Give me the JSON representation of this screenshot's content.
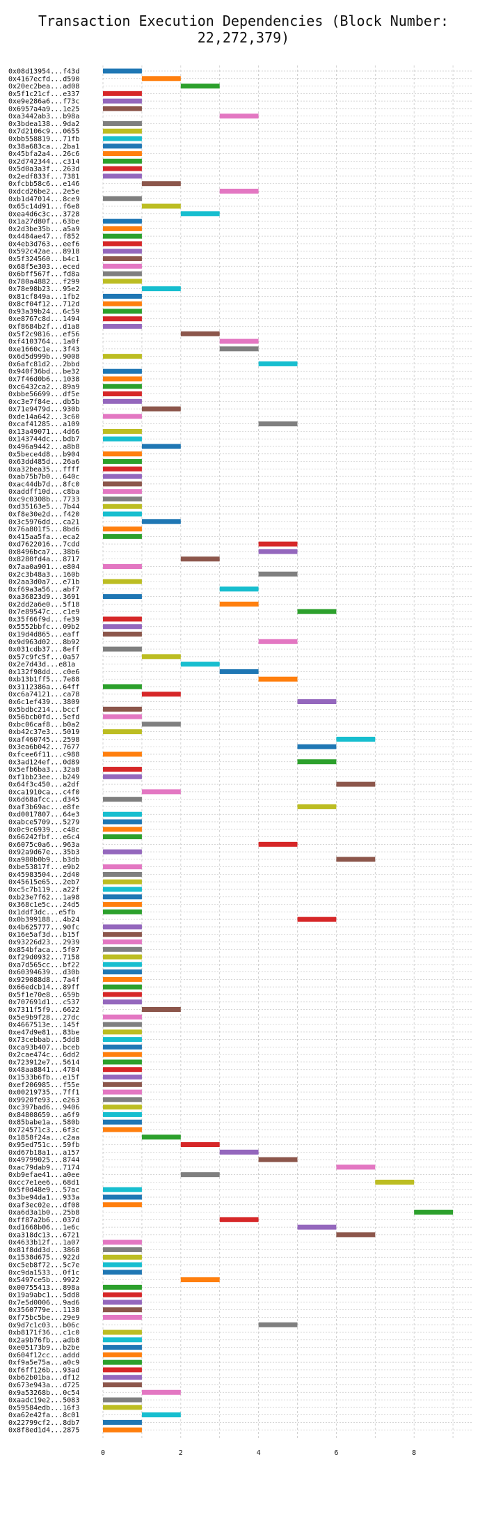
{
  "chart_data": {
    "type": "bar",
    "orientation": "horizontal",
    "title": "Transaction Execution Dependencies (Block Number: 22,272,379)",
    "xlabel": "",
    "ylabel": "",
    "xlim": [
      0,
      9.5
    ],
    "xticks": [
      0,
      2,
      4,
      6,
      8
    ],
    "grid": true,
    "legend": "none",
    "colors": [
      "#1f77b4",
      "#ff7f0e",
      "#2ca02c",
      "#d62728",
      "#9467bd",
      "#8c564b",
      "#e377c2",
      "#7f7f7f",
      "#bcbd22",
      "#17becf"
    ],
    "transactions": [
      {
        "label": "0x08d13954...f43d",
        "level": 0
      },
      {
        "label": "0x4167ecfd...d590",
        "level": 1
      },
      {
        "label": "0x20ec2bea...ad08",
        "level": 2
      },
      {
        "label": "0x5f1c21cf...e337",
        "level": 0
      },
      {
        "label": "0xe9e286a6...f73c",
        "level": 0
      },
      {
        "label": "0x6957a4a9...1e25",
        "level": 0
      },
      {
        "label": "0xa3442ab3...b98a",
        "level": 3
      },
      {
        "label": "0x3bdea138...9da2",
        "level": 0
      },
      {
        "label": "0x7d2106c9...0655",
        "level": 0
      },
      {
        "label": "0xbb558819...71fb",
        "level": 0
      },
      {
        "label": "0x38a683ca...2ba1",
        "level": 0
      },
      {
        "label": "0x45bfa2a4...26c6",
        "level": 0
      },
      {
        "label": "0x2d742344...c314",
        "level": 0
      },
      {
        "label": "0x5d0a3a3f...263d",
        "level": 0
      },
      {
        "label": "0x2edf833f...7381",
        "level": 0
      },
      {
        "label": "0xfcbb58c6...e146",
        "level": 1
      },
      {
        "label": "0xdcd26be2...2e5e",
        "level": 3
      },
      {
        "label": "0xb1d47014...8ce9",
        "level": 0
      },
      {
        "label": "0x65c14d91...f6e8",
        "level": 1
      },
      {
        "label": "0xea4d6c3c...3728",
        "level": 2
      },
      {
        "label": "0x1a27d80f...63be",
        "level": 0
      },
      {
        "label": "0x2d3be35b...a5a9",
        "level": 0
      },
      {
        "label": "0x4484ae47...f852",
        "level": 0
      },
      {
        "label": "0x4eb3d763...eef6",
        "level": 0
      },
      {
        "label": "0x592c42ae...8918",
        "level": 0
      },
      {
        "label": "0x5f324560...b4c1",
        "level": 0
      },
      {
        "label": "0x68f5e303...eced",
        "level": 0
      },
      {
        "label": "0x6bff567f...fd8a",
        "level": 0
      },
      {
        "label": "0x780a4882...f299",
        "level": 0
      },
      {
        "label": "0x78e98b23...95e2",
        "level": 1
      },
      {
        "label": "0x81cf849a...1fb2",
        "level": 0
      },
      {
        "label": "0x8cf04f12...712d",
        "level": 0
      },
      {
        "label": "0x93a39b24...6c59",
        "level": 0
      },
      {
        "label": "0xe8767c8d...1494",
        "level": 0
      },
      {
        "label": "0xf8684b2f...d1a8",
        "level": 0
      },
      {
        "label": "0x5f2c9816...ef56",
        "level": 2
      },
      {
        "label": "0xf4103764...1a0f",
        "level": 3
      },
      {
        "label": "0xe1660c1e...3f43",
        "level": 3
      },
      {
        "label": "0x6d5d999b...9008",
        "level": 0
      },
      {
        "label": "0x6afc81d2...2bbd",
        "level": 4
      },
      {
        "label": "0x940f36bd...be32",
        "level": 0
      },
      {
        "label": "0x7f46d0b6...1038",
        "level": 0
      },
      {
        "label": "0xc6432ca2...89a9",
        "level": 0
      },
      {
        "label": "0xbbe56699...df5e",
        "level": 0
      },
      {
        "label": "0xc3e7f84e...db5b",
        "level": 0
      },
      {
        "label": "0x71e9479d...930b",
        "level": 1
      },
      {
        "label": "0xde14a642...3c60",
        "level": 0
      },
      {
        "label": "0xcaf41285...a109",
        "level": 4
      },
      {
        "label": "0x13a49071...4d66",
        "level": 0
      },
      {
        "label": "0x143744dc...bdb7",
        "level": 0
      },
      {
        "label": "0x496a9442...a8b8",
        "level": 1
      },
      {
        "label": "0x5bece4d8...b904",
        "level": 0
      },
      {
        "label": "0x63dd485d...26a6",
        "level": 0
      },
      {
        "label": "0xa32bea35...ffff",
        "level": 0
      },
      {
        "label": "0xab75b7b0...640c",
        "level": 0
      },
      {
        "label": "0xac44db7d...8fc0",
        "level": 0
      },
      {
        "label": "0xaddff10d...c8ba",
        "level": 0
      },
      {
        "label": "0xc9c0308b...7733",
        "level": 0
      },
      {
        "label": "0xd35163e5...7b44",
        "level": 0
      },
      {
        "label": "0xf8e30e2d...f420",
        "level": 0
      },
      {
        "label": "0x3c5976dd...ca21",
        "level": 1
      },
      {
        "label": "0x76a801f5...8bd6",
        "level": 0
      },
      {
        "label": "0x415aa5fa...eca2",
        "level": 0
      },
      {
        "label": "0xd7622016...7cdd",
        "level": 4
      },
      {
        "label": "0x8496bca7...38b6",
        "level": 4
      },
      {
        "label": "0x8280fd4a...8717",
        "level": 2
      },
      {
        "label": "0x7aa0a901...e804",
        "level": 0
      },
      {
        "label": "0x2c3b48a3...160b",
        "level": 4
      },
      {
        "label": "0x2aa3d0a7...e71b",
        "level": 0
      },
      {
        "label": "0xf69a3a56...abf7",
        "level": 3
      },
      {
        "label": "0xa36823d9...3691",
        "level": 0
      },
      {
        "label": "0x2dd2a6e0...5f18",
        "level": 3
      },
      {
        "label": "0x7e89547c...c1e9",
        "level": 5
      },
      {
        "label": "0x35f66f9d...fe39",
        "level": 0
      },
      {
        "label": "0x5552bbfc...09b2",
        "level": 0
      },
      {
        "label": "0x19d4d865...eaff",
        "level": 0
      },
      {
        "label": "0x9d963d02...8b92",
        "level": 4
      },
      {
        "label": "0x031cdb37...8eff",
        "level": 0
      },
      {
        "label": "0x57c9fc5f...0a57",
        "level": 1
      },
      {
        "label": "0x2e7d43d...e81a",
        "level": 2
      },
      {
        "label": "0x132f98dd...c0e6",
        "level": 3
      },
      {
        "label": "0xb13b1ff5...7e88",
        "level": 4
      },
      {
        "label": "0x3112386a...64ff",
        "level": 0
      },
      {
        "label": "0xc6a74121...ca78",
        "level": 1
      },
      {
        "label": "0x6c1ef439...3809",
        "level": 5
      },
      {
        "label": "0x5bdbc214...bccf",
        "level": 0
      },
      {
        "label": "0x56bcb0fd...5efd",
        "level": 0
      },
      {
        "label": "0xbc06caf8...b0a2",
        "level": 1
      },
      {
        "label": "0xb42c37e3...5019",
        "level": 0
      },
      {
        "label": "0xaf460745...2598",
        "level": 6
      },
      {
        "label": "0x3ea6b042...7677",
        "level": 5
      },
      {
        "label": "0xfcee6f11...c988",
        "level": 0
      },
      {
        "label": "0x3ad124ef...0d89",
        "level": 5
      },
      {
        "label": "0x5efb6ba3...32a8",
        "level": 0
      },
      {
        "label": "0xf1bb23ee...b249",
        "level": 0
      },
      {
        "label": "0x64f3c450...a2df",
        "level": 6
      },
      {
        "label": "0xca1910ca...c4f0",
        "level": 1
      },
      {
        "label": "0x6d68afcc...d345",
        "level": 0
      },
      {
        "label": "0xaf3b69ac...e8fe",
        "level": 5
      },
      {
        "label": "0xd0017807...64e3",
        "level": 0
      },
      {
        "label": "0xabce5709...5279",
        "level": 0
      },
      {
        "label": "0x0c9c6939...c48c",
        "level": 0
      },
      {
        "label": "0x66242fbf...e6c4",
        "level": 0
      },
      {
        "label": "0x6075c0a6...963a",
        "level": 4
      },
      {
        "label": "0x92a9d67e...35b3",
        "level": 0
      },
      {
        "label": "0xa980b0b9...b3db",
        "level": 6
      },
      {
        "label": "0xbe53817f...e9b2",
        "level": 0
      },
      {
        "label": "0x45983504...2d40",
        "level": 0
      },
      {
        "label": "0x45615e65...2eb7",
        "level": 0
      },
      {
        "label": "0xc5c7b119...a22f",
        "level": 0
      },
      {
        "label": "0xb23e7f62...1a98",
        "level": 0
      },
      {
        "label": "0x368c1e5c...24d5",
        "level": 0
      },
      {
        "label": "0x1ddf3dc...e5fb",
        "level": 0
      },
      {
        "label": "0x0b399188...4b24",
        "level": 5
      },
      {
        "label": "0x4b625777...90fc",
        "level": 0
      },
      {
        "label": "0x16e5af3d...b15f",
        "level": 0
      },
      {
        "label": "0x93226d23...2939",
        "level": 0
      },
      {
        "label": "0x854bfaca...5f07",
        "level": 0
      },
      {
        "label": "0xf29d0932...7158",
        "level": 0
      },
      {
        "label": "0xa7d565cc...bf22",
        "level": 0
      },
      {
        "label": "0x60394639...d30b",
        "level": 0
      },
      {
        "label": "0x929088d8...7a4f",
        "level": 0
      },
      {
        "label": "0x66edcb14...89ff",
        "level": 0
      },
      {
        "label": "0x5f1e70e8...659b",
        "level": 0
      },
      {
        "label": "0x707691d1...c537",
        "level": 0
      },
      {
        "label": "0x7311f5f9...6622",
        "level": 1
      },
      {
        "label": "0x5e9b9f28...27dc",
        "level": 0
      },
      {
        "label": "0x4667513e...145f",
        "level": 0
      },
      {
        "label": "0xe47d9e81...83be",
        "level": 0
      },
      {
        "label": "0x73cebbab...5dd8",
        "level": 0
      },
      {
        "label": "0xca93b407...bceb",
        "level": 0
      },
      {
        "label": "0x2cae474c...6dd2",
        "level": 0
      },
      {
        "label": "0x723912e7...5614",
        "level": 0
      },
      {
        "label": "0x48aa8841...4784",
        "level": 0
      },
      {
        "label": "0x1533b6fb...e15f",
        "level": 0
      },
      {
        "label": "0xef206985...f55e",
        "level": 0
      },
      {
        "label": "0x00219735...7ff1",
        "level": 0
      },
      {
        "label": "0x9920fe93...e263",
        "level": 0
      },
      {
        "label": "0xc397bad6...9406",
        "level": 0
      },
      {
        "label": "0x84808659...a6f9",
        "level": 0
      },
      {
        "label": "0x85babe1a...580b",
        "level": 0
      },
      {
        "label": "0x724571c3...6f3c",
        "level": 0
      },
      {
        "label": "0x1858f24a...c2aa",
        "level": 1
      },
      {
        "label": "0x95ed751c...59fb",
        "level": 2
      },
      {
        "label": "0xd67b18a1...a157",
        "level": 3
      },
      {
        "label": "0x49799025...8744",
        "level": 4
      },
      {
        "label": "0xac79dab9...7174",
        "level": 6
      },
      {
        "label": "0xb9efae41...a0ee",
        "level": 2
      },
      {
        "label": "0xcc7e1ee6...68d1",
        "level": 7
      },
      {
        "label": "0x5f0d48e9...57ac",
        "level": 0
      },
      {
        "label": "0x3be94da1...933a",
        "level": 0
      },
      {
        "label": "0xaf3ec02e...df08",
        "level": 0
      },
      {
        "label": "0xa6d3a1b0...25b8",
        "level": 8
      },
      {
        "label": "0xff87a2b6...037d",
        "level": 3
      },
      {
        "label": "0xd1668b06...1e6c",
        "level": 5
      },
      {
        "label": "0xa318dc13...6721",
        "level": 6
      },
      {
        "label": "0x4633b12f...1a07",
        "level": 0
      },
      {
        "label": "0x81f8dd3d...3868",
        "level": 0
      },
      {
        "label": "0x1538d675...922d",
        "level": 0
      },
      {
        "label": "0xc5eb8f72...5c7e",
        "level": 0
      },
      {
        "label": "0xc9da1533...0f1c",
        "level": 0
      },
      {
        "label": "0x5497ce5b...9922",
        "level": 2
      },
      {
        "label": "0x00755413...898a",
        "level": 0
      },
      {
        "label": "0x19a9abc1...5dd8",
        "level": 0
      },
      {
        "label": "0x7e5d0006...9ad6",
        "level": 0
      },
      {
        "label": "0x3560779e...1138",
        "level": 0
      },
      {
        "label": "0xf75bc5be...29e9",
        "level": 0
      },
      {
        "label": "0x9d7c1c03...b06c",
        "level": 4
      },
      {
        "label": "0xb8171f36...c1c0",
        "level": 0
      },
      {
        "label": "0x2a9b76fb...adb8",
        "level": 0
      },
      {
        "label": "0xe05173b9...b2be",
        "level": 0
      },
      {
        "label": "0x604f12cc...addd",
        "level": 0
      },
      {
        "label": "0xf9a5e75a...a0c9",
        "level": 0
      },
      {
        "label": "0xf6ff126b...93ad",
        "level": 0
      },
      {
        "label": "0xb62b01ba...df12",
        "level": 0
      },
      {
        "label": "0x673e943a...d725",
        "level": 0
      },
      {
        "label": "0x9a53268b...0c54",
        "level": 1
      },
      {
        "label": "0xaadc19e2...5083",
        "level": 0
      },
      {
        "label": "0x59584edb...16f3",
        "level": 0
      },
      {
        "label": "0xa62e42fa...8c01",
        "level": 1
      },
      {
        "label": "0x22799cf2...8db7",
        "level": 0
      },
      {
        "label": "0x8f8ed1d4...2875",
        "level": 0
      }
    ]
  }
}
